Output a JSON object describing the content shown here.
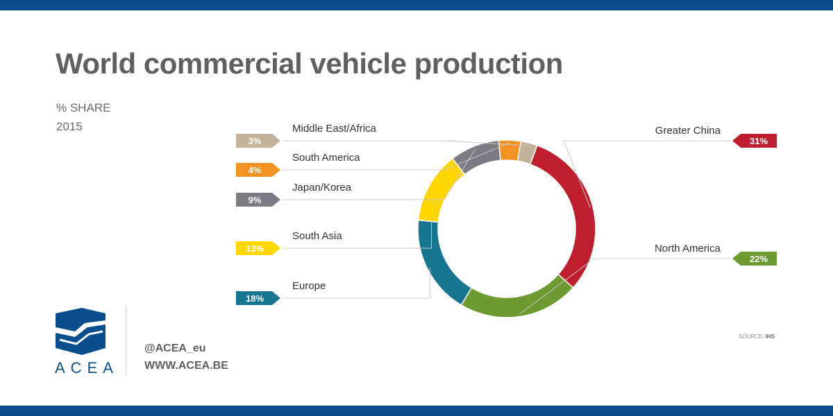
{
  "colors": {
    "brand_blue": "#0a4d8c",
    "label_line": "#c8c8c8"
  },
  "header": {
    "title": "World commercial vehicle production"
  },
  "subtitle": {
    "line1": "% SHARE",
    "line2": "2015"
  },
  "footer": {
    "brand": "ACEA",
    "handle": "@ACEA_eu",
    "website": "WWW.ACEA.BE",
    "source_prefix": "SOURCE:",
    "source_name": "IHS"
  },
  "chart_data": {
    "type": "pie",
    "donut": true,
    "unit": "%",
    "slices": [
      {
        "name": "Greater China",
        "value": 31,
        "label": "31%",
        "color": "#be1e2d",
        "side": "right"
      },
      {
        "name": "North America",
        "value": 22,
        "label": "22%",
        "color": "#6e9a32",
        "side": "right"
      },
      {
        "name": "Europe",
        "value": 18,
        "label": "18%",
        "color": "#17758f",
        "side": "left"
      },
      {
        "name": "South Asia",
        "value": 13,
        "label": "13%",
        "color": "#fed700",
        "side": "left"
      },
      {
        "name": "Japan/Korea",
        "value": 9,
        "label": "9%",
        "color": "#7b7b84",
        "side": "left"
      },
      {
        "name": "South America",
        "value": 4,
        "label": "4%",
        "color": "#f39323",
        "side": "left"
      },
      {
        "name": "Middle East/Africa",
        "value": 3,
        "label": "3%",
        "color": "#c2b29a",
        "side": "left"
      }
    ]
  }
}
